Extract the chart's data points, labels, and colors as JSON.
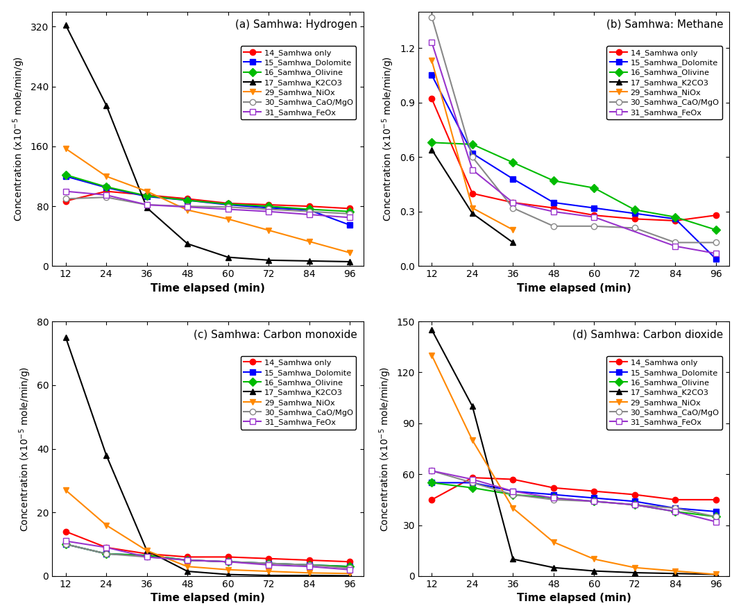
{
  "time": [
    12,
    24,
    36,
    48,
    60,
    72,
    84,
    96
  ],
  "series_labels": [
    "14_Samhwa only",
    "15_Samhwa_Dolomite",
    "16_Samhwa_Olivine",
    "17_Samhwa_K2CO3",
    "29_Samhwa_NiOx",
    "30_Samhwa_CaO/MgO",
    "31_Samhwa_FeOx"
  ],
  "colors": [
    "#ff0000",
    "#0000ff",
    "#00bb00",
    "#000000",
    "#ff8800",
    "#888888",
    "#9933cc"
  ],
  "markers": [
    "o",
    "s",
    "D",
    "^",
    "v",
    "o",
    "s"
  ],
  "markerfilled": [
    true,
    true,
    true,
    true,
    true,
    false,
    false
  ],
  "hydrogen": {
    "title": "(a) Samhwa: Hydrogen",
    "ylim": [
      0,
      340
    ],
    "yticks": [
      0,
      80,
      160,
      240,
      320
    ],
    "data": [
      [
        87,
        100,
        95,
        90,
        84,
        82,
        80,
        77
      ],
      [
        120,
        105,
        93,
        88,
        82,
        78,
        75,
        55
      ],
      [
        122,
        106,
        94,
        88,
        83,
        80,
        76,
        73
      ],
      [
        322,
        215,
        78,
        30,
        12,
        8,
        7,
        6
      ],
      [
        157,
        120,
        100,
        75,
        63,
        48,
        33,
        18
      ],
      [
        90,
        92,
        82,
        80,
        79,
        76,
        73,
        70
      ],
      [
        100,
        95,
        82,
        79,
        76,
        73,
        69,
        65
      ]
    ]
  },
  "methane": {
    "title": "(b) Samhwa: Methane",
    "ylim": [
      0,
      1.4
    ],
    "yticks": [
      0,
      0.3,
      0.6,
      0.9,
      1.2
    ],
    "data": [
      [
        0.92,
        0.4,
        0.35,
        0.32,
        0.28,
        0.26,
        0.25,
        0.28
      ],
      [
        1.05,
        0.62,
        0.48,
        0.35,
        0.32,
        0.29,
        0.26,
        0.04
      ],
      [
        0.68,
        0.67,
        0.57,
        0.47,
        0.43,
        0.31,
        0.27,
        0.2
      ],
      [
        0.64,
        0.29,
        0.13,
        null,
        null,
        null,
        null,
        null
      ],
      [
        1.13,
        0.32,
        0.2,
        null,
        null,
        null,
        null,
        null
      ],
      [
        1.37,
        0.6,
        0.32,
        0.22,
        0.22,
        0.21,
        0.13,
        0.13
      ],
      [
        1.23,
        0.53,
        0.35,
        0.3,
        0.27,
        null,
        0.11,
        0.07
      ]
    ]
  },
  "co": {
    "title": "(c) Samhwa: Carbon monoxide",
    "ylim": [
      0,
      80
    ],
    "yticks": [
      0,
      20,
      40,
      60,
      80
    ],
    "data": [
      [
        14,
        9,
        7,
        6,
        6,
        5.5,
        5,
        4.5
      ],
      [
        10,
        7,
        6.5,
        5,
        4.5,
        4.0,
        3.5,
        3.0
      ],
      [
        10,
        7,
        6.5,
        5,
        4.5,
        4.0,
        3.5,
        3.0
      ],
      [
        75,
        38,
        8,
        1.5,
        0.5,
        0.2,
        0.2,
        0.1
      ],
      [
        27,
        16,
        8,
        3,
        2,
        1.5,
        1,
        0.8
      ],
      [
        10,
        7,
        6,
        5,
        4.5,
        4.0,
        3.5,
        2.5
      ],
      [
        11,
        9,
        6,
        5,
        4.5,
        3.5,
        3.0,
        2.0
      ]
    ]
  },
  "co2": {
    "title": "(d) Samhwa: Carbon dioxide",
    "ylim": [
      0,
      150
    ],
    "yticks": [
      0,
      30,
      60,
      90,
      120,
      150
    ],
    "data": [
      [
        45,
        58,
        57,
        52,
        50,
        48,
        45,
        45
      ],
      [
        55,
        55,
        50,
        48,
        46,
        44,
        40,
        38
      ],
      [
        55,
        52,
        48,
        46,
        44,
        42,
        38,
        35
      ],
      [
        145,
        100,
        10,
        5,
        3,
        2,
        1.5,
        1
      ],
      [
        130,
        80,
        40,
        20,
        10,
        5,
        3,
        1
      ],
      [
        62,
        55,
        48,
        45,
        44,
        42,
        40,
        35
      ],
      [
        62,
        57,
        50,
        46,
        44,
        42,
        38,
        32
      ]
    ]
  }
}
